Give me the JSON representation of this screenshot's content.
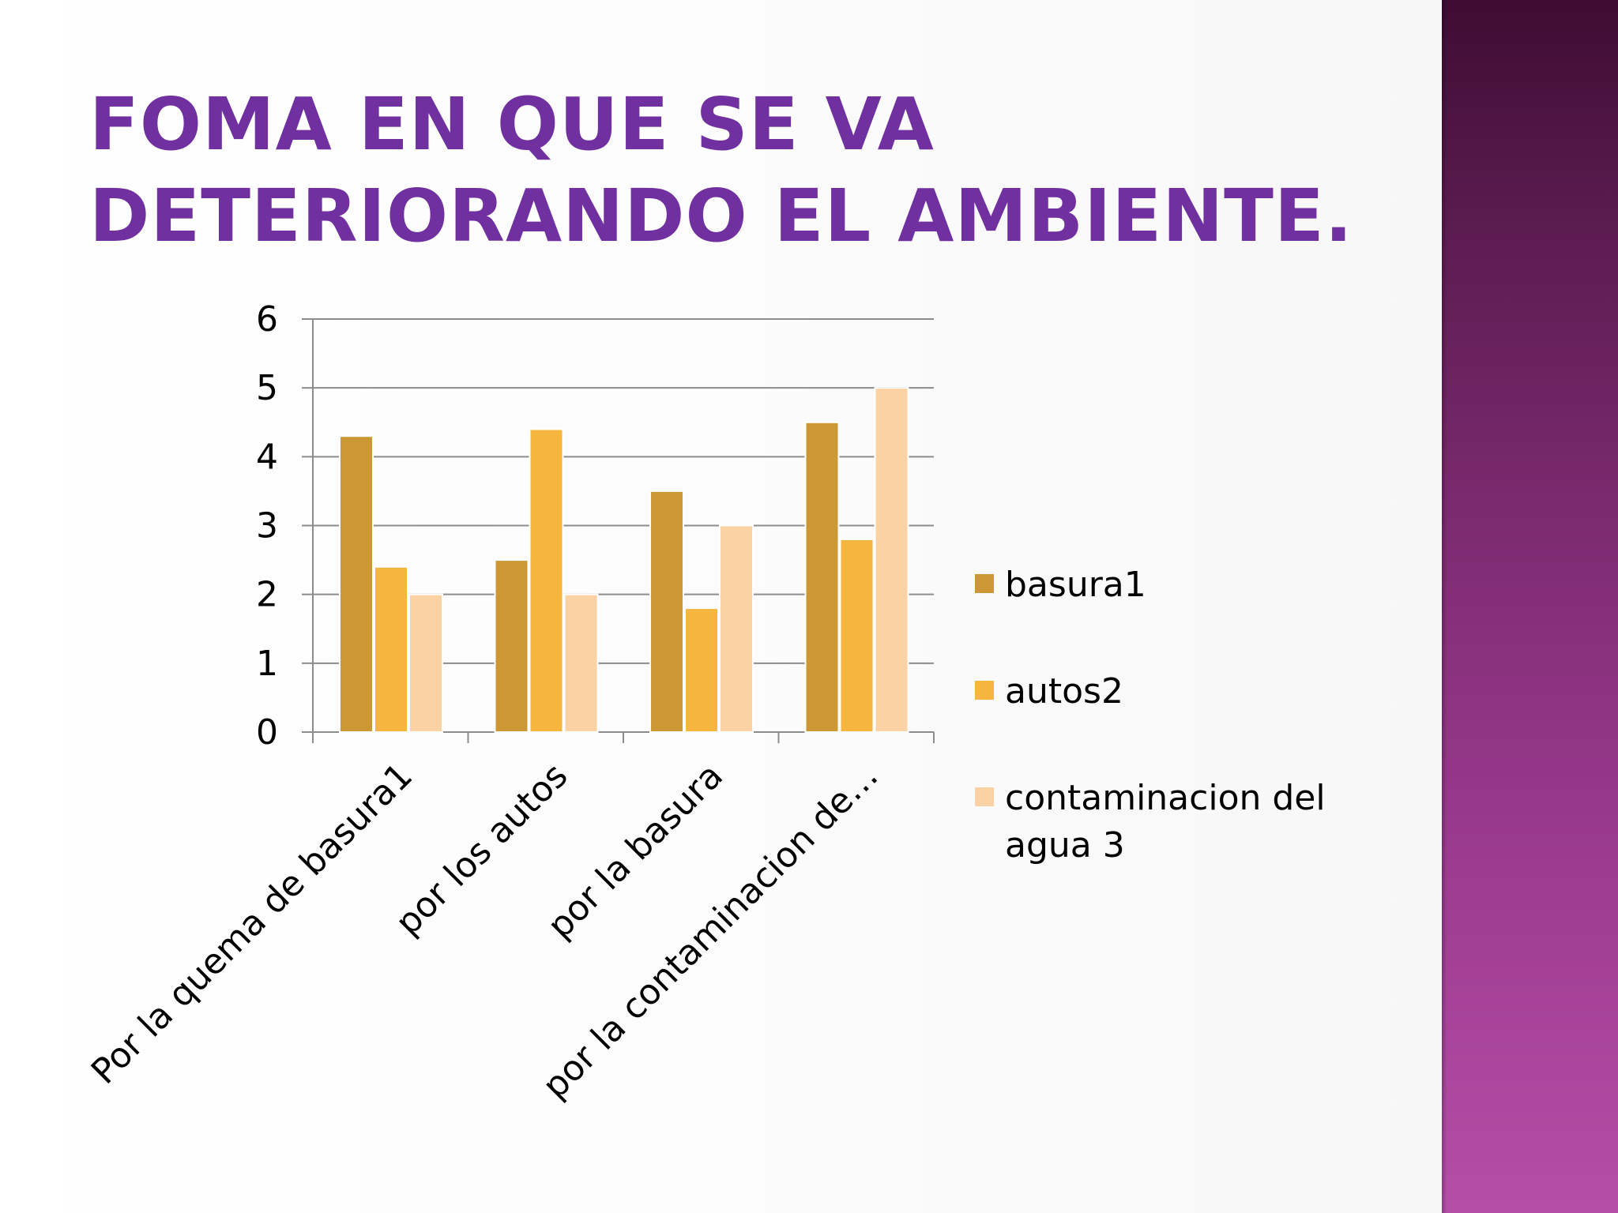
{
  "slide": {
    "title_lines": [
      "FOMA EN QUE SE VA",
      "DETERIORANDO EL AMBIENTE."
    ]
  },
  "colors": {
    "title": "#7030a0",
    "band_top": "#3e0c32",
    "band_bottom": "#b44ea6"
  },
  "chart_data": {
    "type": "bar",
    "categories": [
      "Por la quema de basura1",
      "por los autos",
      "por la basura",
      "por la contaminacion de…"
    ],
    "series": [
      {
        "name": "basura1",
        "values": [
          4.3,
          2.5,
          3.5,
          4.5
        ],
        "color": "#cc9833"
      },
      {
        "name": "autos2",
        "values": [
          2.4,
          4.4,
          1.8,
          2.8
        ],
        "color": "#f5b53f"
      },
      {
        "name": "contaminacion del agua 3",
        "name_lines": [
          "contaminacion del",
          "agua 3"
        ],
        "values": [
          2,
          2,
          3,
          5
        ],
        "color": "#fbd2a4"
      }
    ],
    "ylim": [
      0,
      6
    ],
    "yticks": [
      "0",
      "1",
      "2",
      "3",
      "4",
      "5",
      "6"
    ],
    "grid": true,
    "legend": "right",
    "title": "",
    "xlabel": "",
    "ylabel": ""
  }
}
